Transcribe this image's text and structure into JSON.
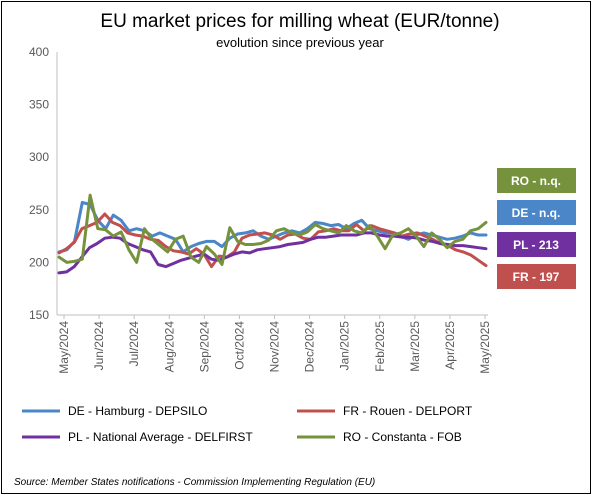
{
  "chart_data": {
    "type": "line",
    "title": "EU market prices for milling wheat (EUR/tonne)",
    "subtitle": "evolution since previous year",
    "xlabel": "",
    "ylabel": "",
    "ylim": [
      150,
      400
    ],
    "yticks": [
      150,
      200,
      250,
      300,
      350,
      400
    ],
    "grid": false,
    "legend_position": "bottom",
    "x_tick_labels": [
      "May/2024",
      "Jun/2024",
      "Jul/2024",
      "Aug/2024",
      "Sep/2024",
      "Oct/2024",
      "Nov/2024",
      "Dec/2024",
      "Jan/2025",
      "Feb/2025",
      "Mar/2025",
      "Apr/2025",
      "May/2025"
    ],
    "series": [
      {
        "name": "DE - Hamburg - DEPSILO",
        "color": "#4a86c8",
        "tag": "DE - n.q.",
        "values": [
          210,
          212,
          220,
          257,
          255,
          240,
          232,
          245,
          240,
          230,
          232,
          230,
          225,
          228,
          225,
          222,
          210,
          215,
          218,
          220,
          220,
          215,
          223,
          227,
          228,
          230,
          225,
          222,
          225,
          228,
          230,
          228,
          232,
          238,
          237,
          235,
          236,
          232,
          237,
          240,
          232,
          230,
          228,
          228,
          225,
          222,
          226,
          228,
          226,
          224,
          222,
          223,
          225,
          228,
          226,
          226
        ]
      },
      {
        "name": "FR - Rouen - DELPORT",
        "color": "#c0504d",
        "tag": "FR - 197",
        "values": [
          209,
          213,
          219,
          232,
          235,
          238,
          246,
          238,
          235,
          228,
          226,
          225,
          222,
          221,
          215,
          211,
          210,
          208,
          213,
          208,
          196,
          206,
          205,
          210,
          223,
          226,
          227,
          228,
          226,
          222,
          226,
          227,
          223,
          222,
          229,
          230,
          232,
          230,
          230,
          236,
          230,
          235,
          232,
          230,
          228,
          225,
          227,
          228,
          225,
          222,
          218,
          216,
          212,
          210,
          207,
          202,
          197
        ]
      },
      {
        "name": "PL - National Average - DELFIRST",
        "color": "#7030a0",
        "tag": "PL - 213",
        "values": [
          190,
          191,
          196,
          205,
          214,
          218,
          223,
          224,
          223,
          218,
          215,
          212,
          210,
          198,
          196,
          199,
          202,
          204,
          206,
          208,
          203,
          202,
          205,
          208,
          210,
          209,
          212,
          213,
          214,
          215,
          217,
          218,
          219,
          222,
          224,
          224,
          225,
          226,
          226,
          226,
          228,
          228,
          226,
          225,
          225,
          224,
          224,
          223,
          221,
          220,
          218,
          217,
          216,
          216,
          215,
          214,
          213
        ]
      },
      {
        "name": "RO - Constanta - FOB",
        "color": "#76923c",
        "tag": "RO - n.q.",
        "values": [
          205,
          200,
          201,
          203,
          264,
          232,
          231,
          225,
          229,
          212,
          200,
          232,
          222,
          216,
          210,
          222,
          225,
          205,
          200,
          215,
          208,
          198,
          233,
          220,
          217,
          217,
          218,
          221,
          230,
          232,
          228,
          226,
          229,
          236,
          232,
          230,
          228,
          235,
          230,
          228,
          235,
          225,
          213,
          226,
          228,
          232,
          225,
          215,
          228,
          222,
          214,
          220,
          222,
          230,
          232,
          238
        ]
      }
    ]
  },
  "source": "Source: Member States notifications - Commission Implementing Regulation (EU)"
}
